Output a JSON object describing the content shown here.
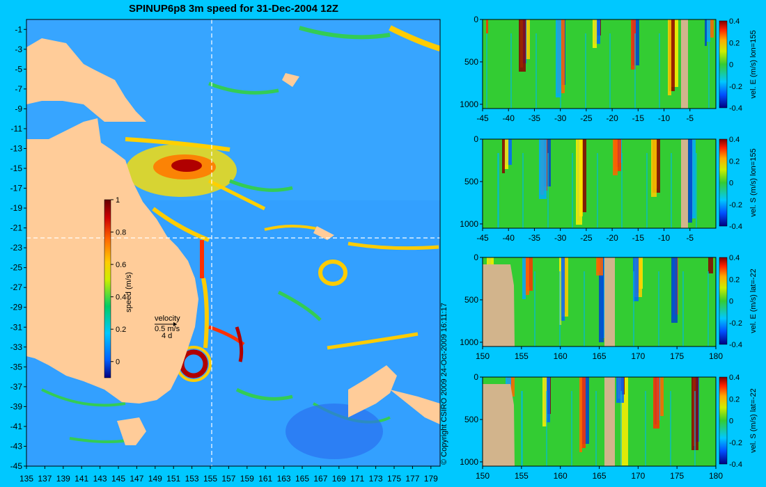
{
  "header": {
    "title": "SPINUP6p8 3m speed for 31-Dec-2004 12Z"
  },
  "copyright": "© Copyright CSIRO 2009   24-Oct-2009 16:11:17",
  "colors": {
    "background": "#00c8ff",
    "land": "#ffcc99",
    "section_land": "#d2b48c"
  },
  "chart_data": [
    {
      "type": "heatmap",
      "title": "SPINUP6p8 3m speed for 31-Dec-2004 12Z",
      "x_ticks": [
        "135",
        "137",
        "139",
        "141",
        "143",
        "145",
        "147",
        "149",
        "151",
        "153",
        "155",
        "157",
        "159",
        "161",
        "163",
        "165",
        "167",
        "169",
        "171",
        "173",
        "175",
        "177",
        "179"
      ],
      "y_ticks": [
        "-1",
        "-3",
        "-5",
        "-7",
        "-9",
        "-11",
        "-13",
        "-15",
        "-17",
        "-19",
        "-21",
        "-23",
        "-25",
        "-27",
        "-29",
        "-31",
        "-33",
        "-35",
        "-37",
        "-39",
        "-41",
        "-43",
        "-45"
      ],
      "xlim": [
        135,
        180
      ],
      "ylim": [
        -45,
        0
      ],
      "section_lines": {
        "lon": 155,
        "lat": -22
      },
      "colorbar": {
        "label": "speed (m/s)",
        "range": [
          -0.1,
          1.0
        ],
        "ticks": [
          "0",
          "0.2",
          "0.4",
          "0.6",
          "0.8",
          "1"
        ]
      },
      "velocity_legend": {
        "title": "velocity",
        "scale": "0.5 m/s",
        "period": "4 d"
      }
    },
    {
      "type": "heatmap",
      "x_ticks": [
        "-45",
        "-40",
        "-35",
        "-30",
        "-25",
        "-20",
        "-15",
        "-10",
        "-5"
      ],
      "xlim": [
        -45,
        0
      ],
      "y_ticks": [
        "0",
        "500",
        "1000"
      ],
      "ylim": [
        0,
        1050
      ],
      "colorbar": {
        "label": "vel. E (m/s) lon=155",
        "ticks": [
          "0.4",
          "0.2",
          "0",
          "-0.2",
          "-0.4"
        ],
        "range": [
          -0.4,
          0.4
        ]
      }
    },
    {
      "type": "heatmap",
      "x_ticks": [
        "-45",
        "-40",
        "-35",
        "-30",
        "-25",
        "-20",
        "-15",
        "-10",
        "-5"
      ],
      "xlim": [
        -45,
        0
      ],
      "y_ticks": [
        "0",
        "500",
        "1000"
      ],
      "ylim": [
        0,
        1050
      ],
      "colorbar": {
        "label": "vel. S (m/s) lon=155",
        "ticks": [
          "0.4",
          "0.2",
          "0",
          "-0.2",
          "-0.4"
        ],
        "range": [
          -0.4,
          0.4
        ]
      }
    },
    {
      "type": "heatmap",
      "x_ticks": [
        "150",
        "155",
        "160",
        "165",
        "170",
        "175",
        "180"
      ],
      "xlim": [
        150,
        180
      ],
      "y_ticks": [
        "0",
        "500",
        "1000"
      ],
      "ylim": [
        0,
        1050
      ],
      "colorbar": {
        "label": "vel. E (m/s) lat=-22",
        "ticks": [
          "0.4",
          "0.2",
          "0",
          "-0.2",
          "-0.4"
        ],
        "range": [
          -0.4,
          0.4
        ]
      }
    },
    {
      "type": "heatmap",
      "x_ticks": [
        "150",
        "155",
        "160",
        "165",
        "170",
        "175",
        "180"
      ],
      "xlim": [
        150,
        180
      ],
      "y_ticks": [
        "0",
        "500",
        "1000"
      ],
      "ylim": [
        0,
        1050
      ],
      "colorbar": {
        "label": "vel. S (m/s) lat=-22",
        "ticks": [
          "0.4",
          "0.2",
          "0",
          "-0.2",
          "-0.4"
        ],
        "range": [
          -0.4,
          0.4
        ]
      }
    }
  ]
}
